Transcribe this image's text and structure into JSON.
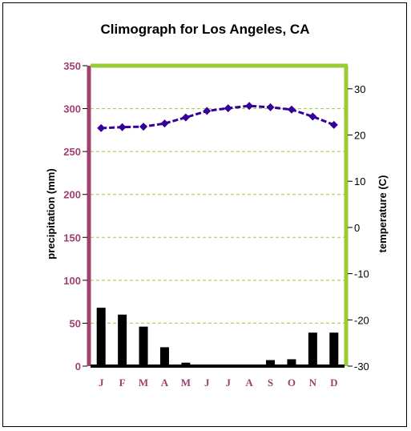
{
  "chart_data": {
    "type": "bar+line",
    "title": "Climograph for Los Angeles, CA",
    "categories": [
      "J",
      "F",
      "M",
      "A",
      "M",
      "J",
      "J",
      "A",
      "S",
      "O",
      "N",
      "D"
    ],
    "series": [
      {
        "name": "precipitation (mm)",
        "type": "bar",
        "axis": "left",
        "values": [
          68,
          60,
          46,
          22,
          4,
          0,
          0,
          0,
          7,
          8,
          39,
          39
        ],
        "color": "#000000"
      },
      {
        "name": "temperature (C)",
        "type": "line",
        "axis": "right",
        "values": [
          21.5,
          21.7,
          21.8,
          22.5,
          23.8,
          25.2,
          25.8,
          26.3,
          26.0,
          25.5,
          24.0,
          22.2
        ],
        "color": "#330099"
      }
    ],
    "left_axis": {
      "label": "precipitation (mm)",
      "range": [
        0,
        350
      ],
      "ticks": [
        0,
        50,
        100,
        150,
        200,
        250,
        300,
        350
      ],
      "color": "#a3416e"
    },
    "right_axis": {
      "label": "temperature (C)",
      "range": [
        -30,
        35
      ],
      "ticks": [
        -30,
        -20,
        -10,
        0,
        10,
        20,
        30
      ],
      "color": "#99cc33"
    },
    "grid": true,
    "grid_style": "dashed",
    "grid_color": "#99cc33"
  }
}
